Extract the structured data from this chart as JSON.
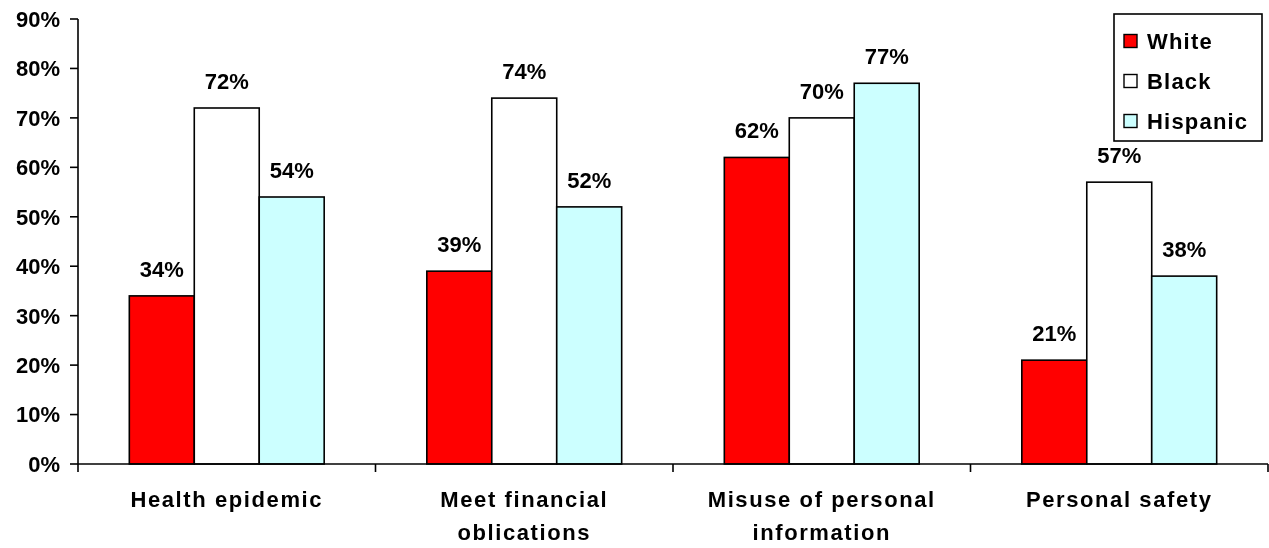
{
  "chart_data": {
    "type": "bar",
    "categories": [
      "Health epidemic",
      "Meet financial oblications",
      "Misuse of personal information",
      "Personal safety"
    ],
    "series": [
      {
        "name": "White",
        "color": "#ff0000",
        "values": [
          34,
          39,
          62,
          21
        ],
        "value_labels": [
          "34%",
          "39%",
          "62%",
          "21%"
        ]
      },
      {
        "name": "Black",
        "color": "#ffffff",
        "values": [
          72,
          74,
          70,
          57
        ],
        "value_labels": [
          "72%",
          "74%",
          "70%",
          "57%"
        ]
      },
      {
        "name": "Hispanic",
        "color": "#ccffff",
        "values": [
          54,
          52,
          77,
          38
        ],
        "value_labels": [
          "54%",
          "52%",
          "77%",
          "38%"
        ]
      }
    ],
    "ylim": [
      0,
      90
    ],
    "yticks": [
      {
        "value": 0,
        "label": "0%"
      },
      {
        "value": 10,
        "label": "10%"
      },
      {
        "value": 20,
        "label": "20%"
      },
      {
        "value": 30,
        "label": "30%"
      },
      {
        "value": 40,
        "label": "40%"
      },
      {
        "value": 50,
        "label": "50%"
      },
      {
        "value": 60,
        "label": "60%"
      },
      {
        "value": 70,
        "label": "70%"
      },
      {
        "value": 80,
        "label": "80%"
      },
      {
        "value": 90,
        "label": "90%"
      }
    ],
    "grid": false,
    "legend": "top right"
  }
}
